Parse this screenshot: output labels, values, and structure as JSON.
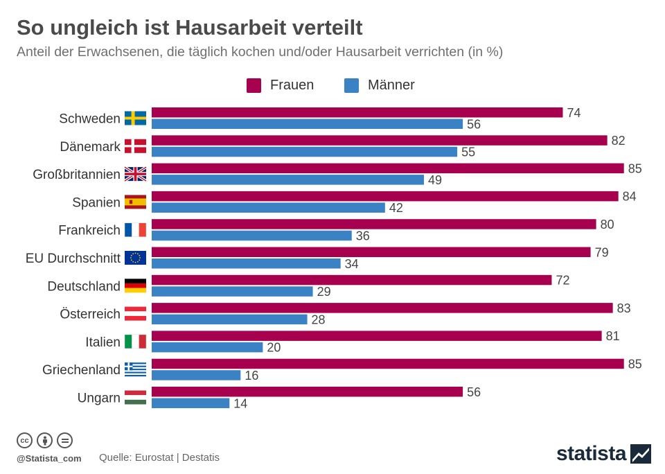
{
  "header": {
    "title": "So ungleich ist Hausarbeit verteilt",
    "subtitle": "Anteil der Erwachsenen, die täglich kochen und/oder Hausarbeit verrichten (in %)"
  },
  "colors": {
    "frauen": "#a6004f",
    "maenner": "#3b82c4"
  },
  "chart_data": {
    "type": "bar",
    "orientation": "horizontal",
    "title": "So ungleich ist Hausarbeit verteilt",
    "subtitle": "Anteil der Erwachsenen, die täglich kochen und/oder Hausarbeit verrichten (in %)",
    "categories": [
      "Schweden",
      "Dänemark",
      "Großbritannien",
      "Spanien",
      "Frankreich",
      "EU Durchschnitt",
      "Deutschland",
      "Österreich",
      "Italien",
      "Griechenland",
      "Ungarn"
    ],
    "flags": [
      "sweden-flag-icon",
      "denmark-flag-icon",
      "uk-flag-icon",
      "spain-flag-icon",
      "france-flag-icon",
      "eu-flag-icon",
      "germany-flag-icon",
      "austria-flag-icon",
      "italy-flag-icon",
      "greece-flag-icon",
      "hungary-flag-icon"
    ],
    "series": [
      {
        "name": "Frauen",
        "color": "#a6004f",
        "values": [
          74,
          82,
          85,
          84,
          80,
          79,
          72,
          83,
          81,
          85,
          56
        ]
      },
      {
        "name": "Männer",
        "color": "#3b82c4",
        "values": [
          56,
          55,
          49,
          42,
          36,
          34,
          29,
          28,
          20,
          16,
          14
        ]
      }
    ],
    "xlim": [
      0,
      85
    ],
    "grid": false,
    "legend_position": "top-center",
    "data_labels": true
  },
  "footer": {
    "handle": "@Statista_com",
    "source": "Quelle: Eurostat | Destatis",
    "brand": "statista",
    "license_icons": [
      "cc-icon",
      "attribution-icon",
      "no-derivatives-icon"
    ]
  }
}
